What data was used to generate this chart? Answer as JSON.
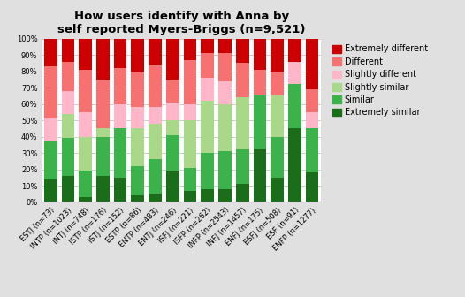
{
  "title": "How users identify with Anna by\nself reported Myers-Briggs (n=9,521)",
  "categories": [
    "ESTJ (n=73)",
    "INTP (n=1023)",
    "INTJ (n=748)",
    "ISTP (n=176)",
    "ISTJ (n=152)",
    "ESTP (n=86)",
    "ENTP (n=483)",
    "ENTJ (n=246)",
    "ISFJ (n=221)",
    "ISFP (n=262)",
    "INFP (n=2543)",
    "INFJ (n=1457)",
    "ENFJ (n=175)",
    "ESFJ (n=508)",
    "ESF (n=91)",
    "ENFP (n=1277)"
  ],
  "segment_labels": [
    "Extremely similar",
    "Similar",
    "Slightly similar",
    "Slightly different",
    "Different",
    "Extremely different"
  ],
  "colors": [
    "#1a6e1a",
    "#3cb34a",
    "#a8d888",
    "#ffb6c8",
    "#f87171",
    "#cc0000"
  ],
  "data": {
    "Extremely similar": [
      14,
      16,
      3,
      16,
      15,
      4,
      5,
      19,
      7,
      8,
      8,
      11,
      32,
      15,
      45,
      18
    ],
    "Similar": [
      23,
      23,
      16,
      24,
      30,
      18,
      21,
      22,
      14,
      22,
      23,
      21,
      33,
      25,
      27,
      27
    ],
    "Slightly similar": [
      0,
      15,
      21,
      5,
      0,
      23,
      22,
      9,
      29,
      32,
      29,
      32,
      0,
      25,
      0,
      0
    ],
    "Slightly different": [
      14,
      14,
      15,
      0,
      15,
      13,
      10,
      11,
      10,
      14,
      14,
      0,
      0,
      0,
      14,
      10
    ],
    "Different": [
      32,
      18,
      26,
      30,
      22,
      22,
      26,
      14,
      27,
      15,
      17,
      21,
      16,
      15,
      0,
      14
    ],
    "Extremely different": [
      17,
      14,
      19,
      25,
      18,
      20,
      16,
      25,
      13,
      9,
      9,
      15,
      19,
      20,
      14,
      31
    ]
  },
  "background_color": "#e0e0e0",
  "plot_bg_color": "#ffffff",
  "ylim": [
    0,
    100
  ],
  "yticks": [
    0,
    10,
    20,
    30,
    40,
    50,
    60,
    70,
    80,
    90,
    100
  ],
  "title_fontsize": 9.5,
  "tick_fontsize": 6.0,
  "legend_fontsize": 7.0,
  "figsize": [
    5.26,
    3.36
  ],
  "dpi": 100
}
